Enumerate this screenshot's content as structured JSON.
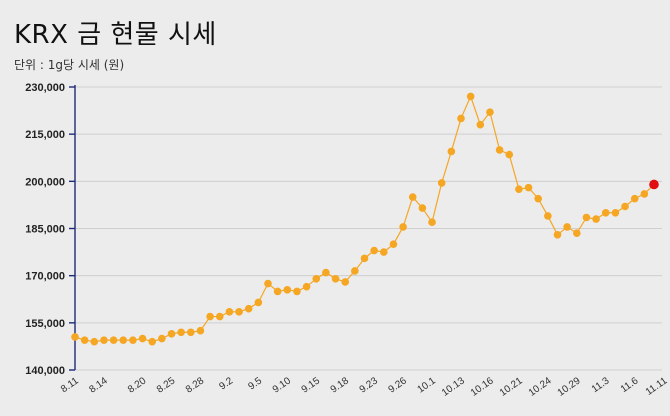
{
  "chart_data": {
    "type": "line",
    "title": "KRX 금 현물 시세",
    "subtitle": "단위 : 1g당 시세 (원)",
    "xlabel": "",
    "ylabel": "",
    "ylim": [
      140000,
      230000
    ],
    "yticks": [
      140000,
      155000,
      170000,
      185000,
      200000,
      215000,
      230000
    ],
    "ytick_labels": [
      "140,000",
      "155,000",
      "170,000",
      "185,000",
      "200,000",
      "215,000",
      "230,000"
    ],
    "xtick_labels": [
      {
        "label": "8.11",
        "index": 0
      },
      {
        "label": "8.14",
        "index": 3
      },
      {
        "label": "8.20",
        "index": 7
      },
      {
        "label": "8.25",
        "index": 10
      },
      {
        "label": "8.28",
        "index": 13
      },
      {
        "label": "9.2",
        "index": 16
      },
      {
        "label": "9.5",
        "index": 19
      },
      {
        "label": "9.10",
        "index": 22
      },
      {
        "label": "9.15",
        "index": 25
      },
      {
        "label": "9.18",
        "index": 28
      },
      {
        "label": "9.23",
        "index": 31
      },
      {
        "label": "9.26",
        "index": 34
      },
      {
        "label": "10.1",
        "index": 37
      },
      {
        "label": "10.13",
        "index": 40
      },
      {
        "label": "10.16",
        "index": 43
      },
      {
        "label": "10.21",
        "index": 46
      },
      {
        "label": "10.24",
        "index": 49
      },
      {
        "label": "10.29",
        "index": 52
      },
      {
        "label": "11.3",
        "index": 55
      },
      {
        "label": "11.6",
        "index": 58
      },
      {
        "label": "11.11",
        "index": 61
      }
    ],
    "series": [
      {
        "name": "KRX 금 현물 시세",
        "color": "#f5a623",
        "highlight_color": "#e01010",
        "values": [
          150500,
          149500,
          149000,
          149500,
          149500,
          149500,
          149500,
          150000,
          149000,
          150000,
          151500,
          152000,
          152000,
          152500,
          157000,
          157000,
          158500,
          158500,
          159500,
          161500,
          167500,
          165000,
          165500,
          165000,
          166500,
          169000,
          171000,
          169000,
          168000,
          171500,
          175500,
          178000,
          177500,
          180000,
          185500,
          195000,
          191500,
          187000,
          199500,
          209500,
          220000,
          227000,
          218000,
          222000,
          210000,
          208500,
          197500,
          198000,
          194500,
          189000,
          183000,
          185500,
          183500,
          188500,
          188000,
          190000,
          190000,
          192000,
          194500,
          196000,
          199000
        ]
      }
    ]
  }
}
